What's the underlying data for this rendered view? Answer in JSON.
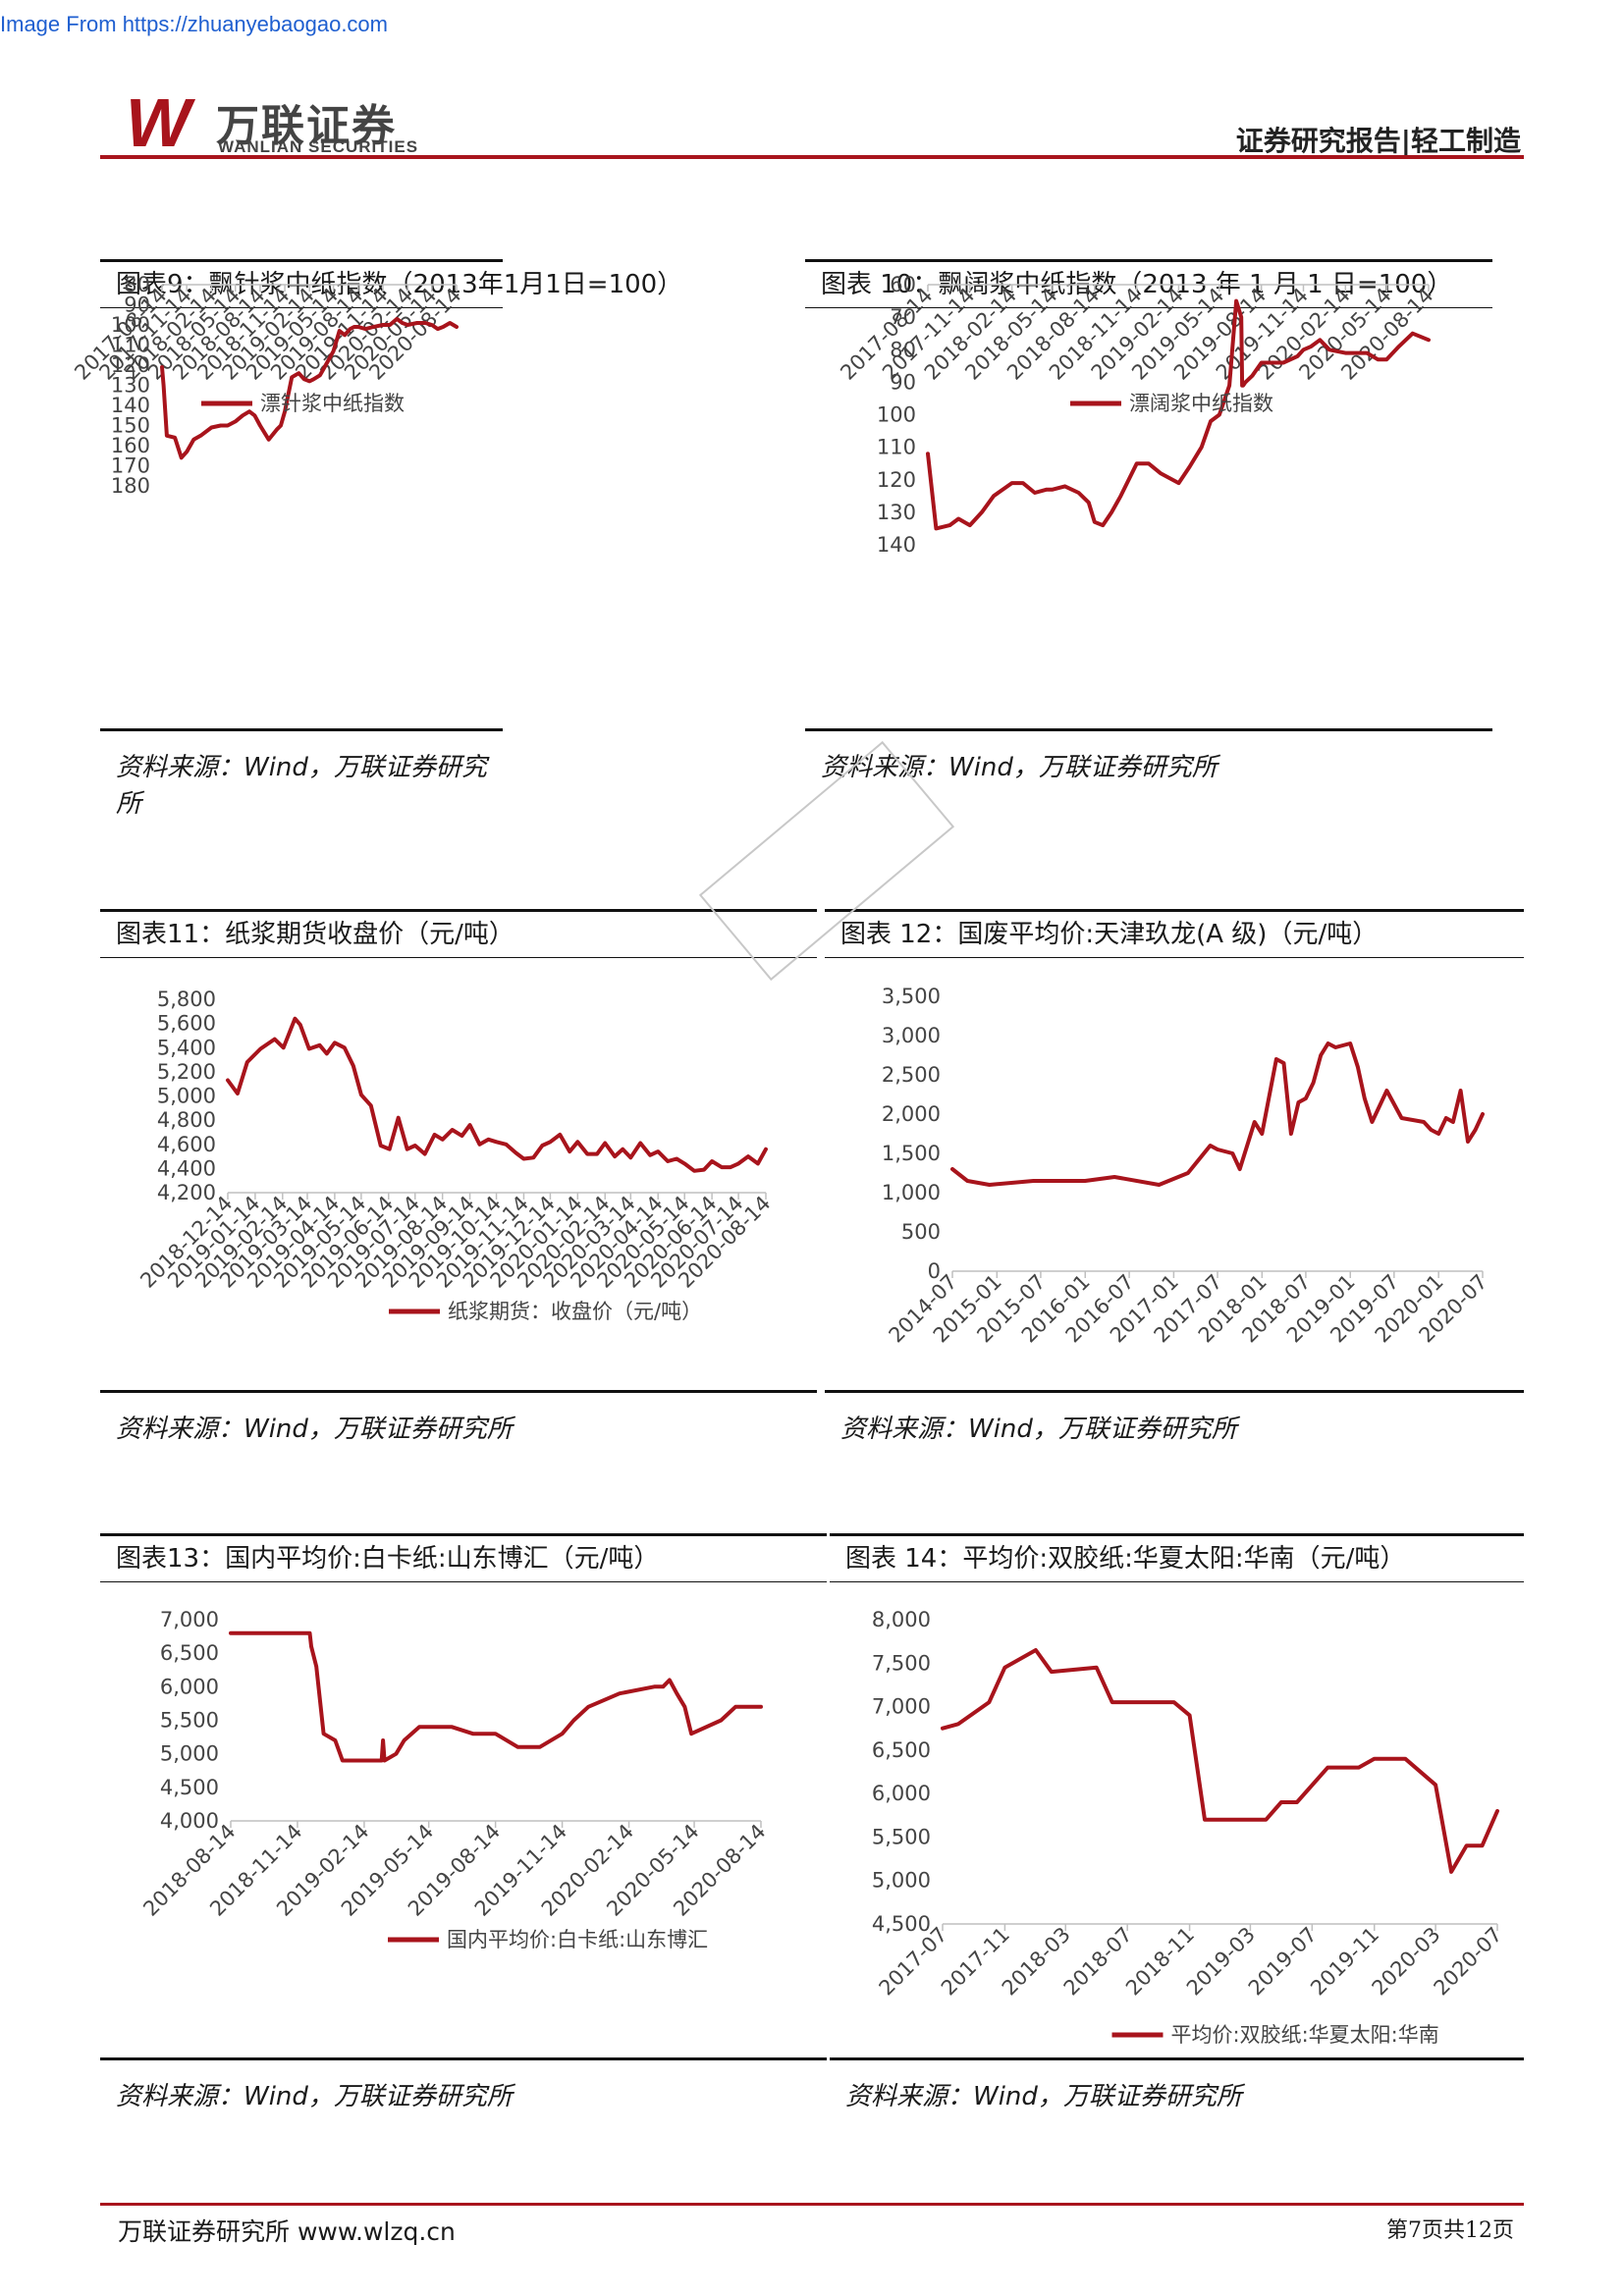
{
  "source_note": "Image From https://zhuanyebaogao.com",
  "header": {
    "logo_mark": "W",
    "logo_cn": "万联证券",
    "logo_en": "WANLIAN SECURITIES",
    "report_type": "证券研究报告|轻工制造",
    "accent_color": "#a8141c"
  },
  "charts": [
    {
      "title": "图表9：飘针浆中纸指数（2013年1月1日=100）",
      "source": "资料来源：Wind，万联证券研究所",
      "chart_data": {
        "type": "line",
        "series": [
          {
            "name": "漂针浆中纸指数",
            "color": "#a8141c",
            "x": [
              "2017-08-14",
              "2017-08-20",
              "2017-09-01",
              "2017-10-01",
              "2017-10-25",
              "2017-11-14",
              "2017-12-10",
              "2018-01-05",
              "2018-02-14",
              "2018-03-20",
              "2018-04-15",
              "2018-05-14",
              "2018-06-10",
              "2018-07-05",
              "2018-07-25",
              "2018-08-14",
              "2018-09-15",
              "2018-10-15",
              "2018-10-30",
              "2018-11-14",
              "2018-12-10",
              "2019-01-05",
              "2019-01-25",
              "2019-02-14",
              "2019-03-01",
              "2019-03-25",
              "2019-04-15",
              "2019-05-14",
              "2019-06-05",
              "2019-06-25",
              "2019-07-15",
              "2019-07-30",
              "2019-08-14",
              "2019-09-10",
              "2019-10-10",
              "2019-11-14",
              "2019-12-10",
              "2020-01-05",
              "2020-01-25",
              "2020-02-14",
              "2020-03-20",
              "2020-04-20",
              "2020-05-14",
              "2020-06-05",
              "2020-06-25",
              "2020-07-20",
              "2020-08-14"
            ],
            "values": [
              121,
              130,
              155,
              156,
              166,
              163,
              157,
              155,
              151,
              150,
              150,
              148,
              145,
              143,
              145,
              150,
              157,
              152,
              150,
              143,
              126,
              124,
              127,
              128,
              127,
              125,
              120,
              113,
              103,
              105,
              102,
              101,
              101,
              102,
              101,
              100,
              100,
              97,
              99,
              100,
              99,
              99,
              100,
              102,
              101,
              99,
              101
            ]
          }
        ],
        "ylim": [
          80,
          180
        ],
        "yticks": [
          80,
          90,
          100,
          110,
          120,
          130,
          140,
          150,
          160,
          170,
          180
        ],
        "xticks": [
          "2017-08-14",
          "2017-11-14",
          "2018-02-14",
          "2018-05-14",
          "2018-08-14",
          "2018-11-14",
          "2019-02-14",
          "2019-05-14",
          "2019-08-14",
          "2019-11-14",
          "2020-02-14",
          "2020-05-14",
          "2020-08-14"
        ],
        "xrange": [
          "2017-08-14",
          "2020-08-14"
        ],
        "tick_format": "int",
        "legend": "bottom"
      }
    },
    {
      "title": "图表 10：飘阔浆中纸指数（2013 年 1 月 1 日=100）",
      "source": "资料来源：Wind，万联证券研究所",
      "chart_data": {
        "type": "line",
        "series": [
          {
            "name": "漂阔浆中纸指数",
            "color": "#a8141c",
            "x": [
              "2017-08-14",
              "2017-09-01",
              "2017-10-01",
              "2017-10-20",
              "2017-11-14",
              "2017-12-10",
              "2018-01-05",
              "2018-02-14",
              "2018-03-10",
              "2018-04-05",
              "2018-05-01",
              "2018-05-14",
              "2018-06-10",
              "2018-07-10",
              "2018-08-01",
              "2018-08-14",
              "2018-09-01",
              "2018-09-20",
              "2018-10-10",
              "2018-11-14",
              "2018-12-10",
              "2019-01-05",
              "2019-02-14",
              "2019-03-10",
              "2019-04-05",
              "2019-04-25",
              "2019-05-14",
              "2019-06-05",
              "2019-06-20",
              "2019-07-01",
              "2019-07-03",
              "2019-07-05",
              "2019-07-10",
              "2019-07-25",
              "2019-08-14",
              "2019-09-01",
              "2019-10-01",
              "2019-11-01",
              "2019-11-14",
              "2019-12-01",
              "2019-12-20",
              "2020-01-10",
              "2020-02-14",
              "2020-03-10",
              "2020-04-01",
              "2020-04-25",
              "2020-05-14",
              "2020-06-10",
              "2020-07-10",
              "2020-08-14"
            ],
            "values": [
              112,
              135,
              134,
              132,
              134,
              130,
              125,
              121,
              121,
              124,
              123,
              123,
              122,
              124,
              127,
              133,
              134,
              130,
              125,
              115,
              115,
              118,
              121,
              116,
              110,
              102,
              100,
              91,
              65,
              70,
              91,
              91,
              90,
              88,
              84,
              84,
              84,
              82,
              80,
              79,
              77,
              80,
              81,
              81,
              81,
              83,
              83,
              79,
              75,
              77
            ]
          }
        ],
        "ylim": [
          60,
          140
        ],
        "yticks": [
          60,
          70,
          80,
          90,
          100,
          110,
          120,
          130,
          140
        ],
        "xticks": [
          "2017-08-14",
          "2017-11-14",
          "2018-02-14",
          "2018-05-14",
          "2018-08-14",
          "2018-11-14",
          "2019-02-14",
          "2019-05-14",
          "2019-08-14",
          "2019-11-14",
          "2020-02-14",
          "2020-05-14",
          "2020-08-14"
        ],
        "xrange": [
          "2017-08-14",
          "2020-08-14"
        ],
        "tick_format": "int",
        "legend": "bottom"
      }
    },
    {
      "title": "图表11：纸浆期货收盘价（元/吨）",
      "source": "资料来源：Wind，万联证券研究所",
      "chart_data": {
        "type": "line",
        "series": [
          {
            "name": "纸浆期货：收盘价（元/吨）",
            "color": "#a8141c",
            "x": [
              "2018-12-14",
              "2018-12-25",
              "2019-01-05",
              "2019-01-20",
              "2019-02-05",
              "2019-02-15",
              "2019-02-28",
              "2019-03-06",
              "2019-03-16",
              "2019-03-28",
              "2019-04-05",
              "2019-04-14",
              "2019-04-25",
              "2019-05-05",
              "2019-05-14",
              "2019-05-25",
              "2019-06-05",
              "2019-06-15",
              "2019-06-25",
              "2019-07-05",
              "2019-07-14",
              "2019-07-25",
              "2019-08-05",
              "2019-08-14",
              "2019-08-25",
              "2019-09-05",
              "2019-09-14",
              "2019-09-25",
              "2019-10-05",
              "2019-10-14",
              "2019-10-25",
              "2019-11-05",
              "2019-11-14",
              "2019-11-25",
              "2019-12-05",
              "2019-12-14",
              "2019-12-25",
              "2020-01-05",
              "2020-01-14",
              "2020-01-25",
              "2020-02-05",
              "2020-02-14",
              "2020-02-25",
              "2020-03-05",
              "2020-03-14",
              "2020-03-25",
              "2020-04-05",
              "2020-04-14",
              "2020-04-25",
              "2020-05-05",
              "2020-05-14",
              "2020-05-25",
              "2020-06-05",
              "2020-06-14",
              "2020-06-25",
              "2020-07-05",
              "2020-07-14",
              "2020-07-25",
              "2020-08-05",
              "2020-08-14"
            ],
            "values": [
              5130,
              5020,
              5280,
              5390,
              5470,
              5400,
              5640,
              5590,
              5390,
              5420,
              5350,
              5440,
              5400,
              5250,
              5010,
              4920,
              4590,
              4560,
              4820,
              4560,
              4590,
              4520,
              4680,
              4640,
              4720,
              4670,
              4760,
              4600,
              4640,
              4620,
              4600,
              4530,
              4480,
              4490,
              4590,
              4620,
              4680,
              4540,
              4620,
              4520,
              4520,
              4610,
              4500,
              4560,
              4490,
              4610,
              4510,
              4540,
              4460,
              4480,
              4440,
              4380,
              4390,
              4460,
              4410,
              4410,
              4440,
              4500,
              4440,
              4560
            ]
          }
        ],
        "ylim": [
          4200,
          5800
        ],
        "yticks": [
          4200,
          4400,
          4600,
          4800,
          5000,
          5200,
          5400,
          5600,
          5800
        ],
        "xticks": [
          "2018-12-14",
          "2019-01-14",
          "2019-02-14",
          "2019-03-14",
          "2019-04-14",
          "2019-05-14",
          "2019-06-14",
          "2019-07-14",
          "2019-08-14",
          "2019-09-14",
          "2019-10-14",
          "2019-11-14",
          "2019-12-14",
          "2020-01-14",
          "2020-02-14",
          "2020-03-14",
          "2020-04-14",
          "2020-05-14",
          "2020-06-14",
          "2020-07-14",
          "2020-08-14"
        ],
        "xrange": [
          "2018-12-14",
          "2020-08-14"
        ],
        "tick_format": "comma",
        "legend": "bottom"
      }
    },
    {
      "title": "图表 12：国废平均价:天津玖龙(A 级)（元/吨）",
      "source": "资料来源：Wind，万联证券研究所",
      "chart_data": {
        "type": "line",
        "series": [
          {
            "name": "",
            "color": "#a8141c",
            "x": [
              "2014-07",
              "2014-09",
              "2014-12",
              "2015-06",
              "2016-01",
              "2016-05",
              "2016-11",
              "2017-03",
              "2017-06",
              "2017-07",
              "2017-09",
              "2017-10",
              "2017-12",
              "2018-01",
              "2018-03",
              "2018-04",
              "2018-05",
              "2018-06",
              "2018-07",
              "2018-08",
              "2018-09",
              "2018-10",
              "2018-11",
              "2019-01",
              "2019-02",
              "2019-03",
              "2019-04",
              "2019-06",
              "2019-08",
              "2019-11",
              "2019-12",
              "2020-01",
              "2020-02",
              "2020-03",
              "2020-04",
              "2020-05",
              "2020-06",
              "2020-07"
            ],
            "values": [
              1300,
              1150,
              1100,
              1150,
              1150,
              1200,
              1100,
              1250,
              1600,
              1550,
              1500,
              1300,
              1900,
              1750,
              2700,
              2650,
              1750,
              2150,
              2200,
              2400,
              2750,
              2900,
              2850,
              2900,
              2600,
              2200,
              1900,
              2300,
              1950,
              1900,
              1800,
              1750,
              1950,
              1900,
              2300,
              1650,
              1800,
              2000
            ]
          }
        ],
        "ylim": [
          0,
          3500
        ],
        "yticks": [
          0,
          500,
          1000,
          1500,
          2000,
          2500,
          3000,
          3500
        ],
        "xticks": [
          "2014-07",
          "2015-01",
          "2015-07",
          "2016-01",
          "2016-07",
          "2017-01",
          "2017-07",
          "2018-01",
          "2018-07",
          "2019-01",
          "2019-07",
          "2020-01",
          "2020-07"
        ],
        "xrange": [
          "2014-07",
          "2020-07"
        ],
        "tick_format": "comma",
        "legend": "none"
      }
    },
    {
      "title": "图表13：国内平均价:白卡纸:山东博汇（元/吨）",
      "source": "资料来源：Wind，万联证券研究所",
      "chart_data": {
        "type": "line",
        "series": [
          {
            "name": "国内平均价:白卡纸:山东博汇",
            "color": "#a8141c",
            "x": [
              "2018-08-14",
              "2018-12-01",
              "2018-12-03",
              "2018-12-10",
              "2018-12-15",
              "2018-12-20",
              "2019-01-05",
              "2019-01-15",
              "2019-02-14",
              "2019-03-10",
              "2019-03-12",
              "2019-03-14",
              "2019-03-30",
              "2019-04-10",
              "2019-05-01",
              "2019-06-15",
              "2019-07-14",
              "2019-08-14",
              "2019-09-14",
              "2019-10-14",
              "2019-11-14",
              "2019-11-30",
              "2019-12-20",
              "2020-02-01",
              "2020-03-20",
              "2020-04-01",
              "2020-04-10",
              "2020-04-20",
              "2020-05-01",
              "2020-05-10",
              "2020-06-20",
              "2020-07-10",
              "2020-08-14"
            ],
            "values": [
              6800,
              6800,
              6600,
              6300,
              5800,
              5300,
              5200,
              4900,
              4900,
              4900,
              5200,
              4900,
              5000,
              5200,
              5400,
              5400,
              5300,
              5300,
              5100,
              5100,
              5300,
              5500,
              5700,
              5900,
              6000,
              6000,
              6100,
              5900,
              5700,
              5300,
              5500,
              5700,
              5700
            ]
          }
        ],
        "ylim": [
          4000,
          7000
        ],
        "yticks": [
          4000,
          4500,
          5000,
          5500,
          6000,
          6500,
          7000
        ],
        "xticks": [
          "2018-08-14",
          "2018-11-14",
          "2019-02-14",
          "2019-05-14",
          "2019-08-14",
          "2019-11-14",
          "2020-02-14",
          "2020-05-14",
          "2020-08-14"
        ],
        "xrange": [
          "2018-08-14",
          "2020-08-14"
        ],
        "tick_format": "comma",
        "legend": "bottom"
      }
    },
    {
      "title": "图表 14：平均价:双胶纸:华夏太阳:华南（元/吨）",
      "source": "资料来源：Wind，万联证券研究所",
      "chart_data": {
        "type": "line",
        "series": [
          {
            "name": "平均价:双胶纸:华夏太阳:华南",
            "color": "#a8141c",
            "x": [
              "2017-07",
              "2017-08",
              "2017-10",
              "2017-11",
              "2018-01",
              "2018-02",
              "2018-05",
              "2018-06",
              "2018-10",
              "2018-11",
              "2018-12",
              "2019-04",
              "2019-05",
              "2019-06",
              "2019-08",
              "2019-10",
              "2019-11",
              "2020-01",
              "2020-03",
              "2020-04",
              "2020-05",
              "2020-06",
              "2020-07"
            ],
            "values": [
              6750,
              6800,
              7050,
              7450,
              7650,
              7400,
              7450,
              7050,
              7050,
              6900,
              5700,
              5700,
              5900,
              5900,
              6300,
              6300,
              6400,
              6400,
              6100,
              5100,
              5400,
              5400,
              5800
            ]
          }
        ],
        "ylim": [
          4500,
          8000
        ],
        "yticks": [
          4500,
          5000,
          5500,
          6000,
          6500,
          7000,
          7500,
          8000
        ],
        "xticks": [
          "2017-07",
          "2017-11",
          "2018-03",
          "2018-07",
          "2018-11",
          "2019-03",
          "2019-07",
          "2019-11",
          "2020-03",
          "2020-07"
        ],
        "xrange": [
          "2017-07",
          "2020-07"
        ],
        "tick_format": "comma",
        "legend": "bottom-overlap"
      }
    }
  ],
  "footer": {
    "left": "万联证券研究所 www.wlzq.cn",
    "right": "第7页共12页"
  }
}
